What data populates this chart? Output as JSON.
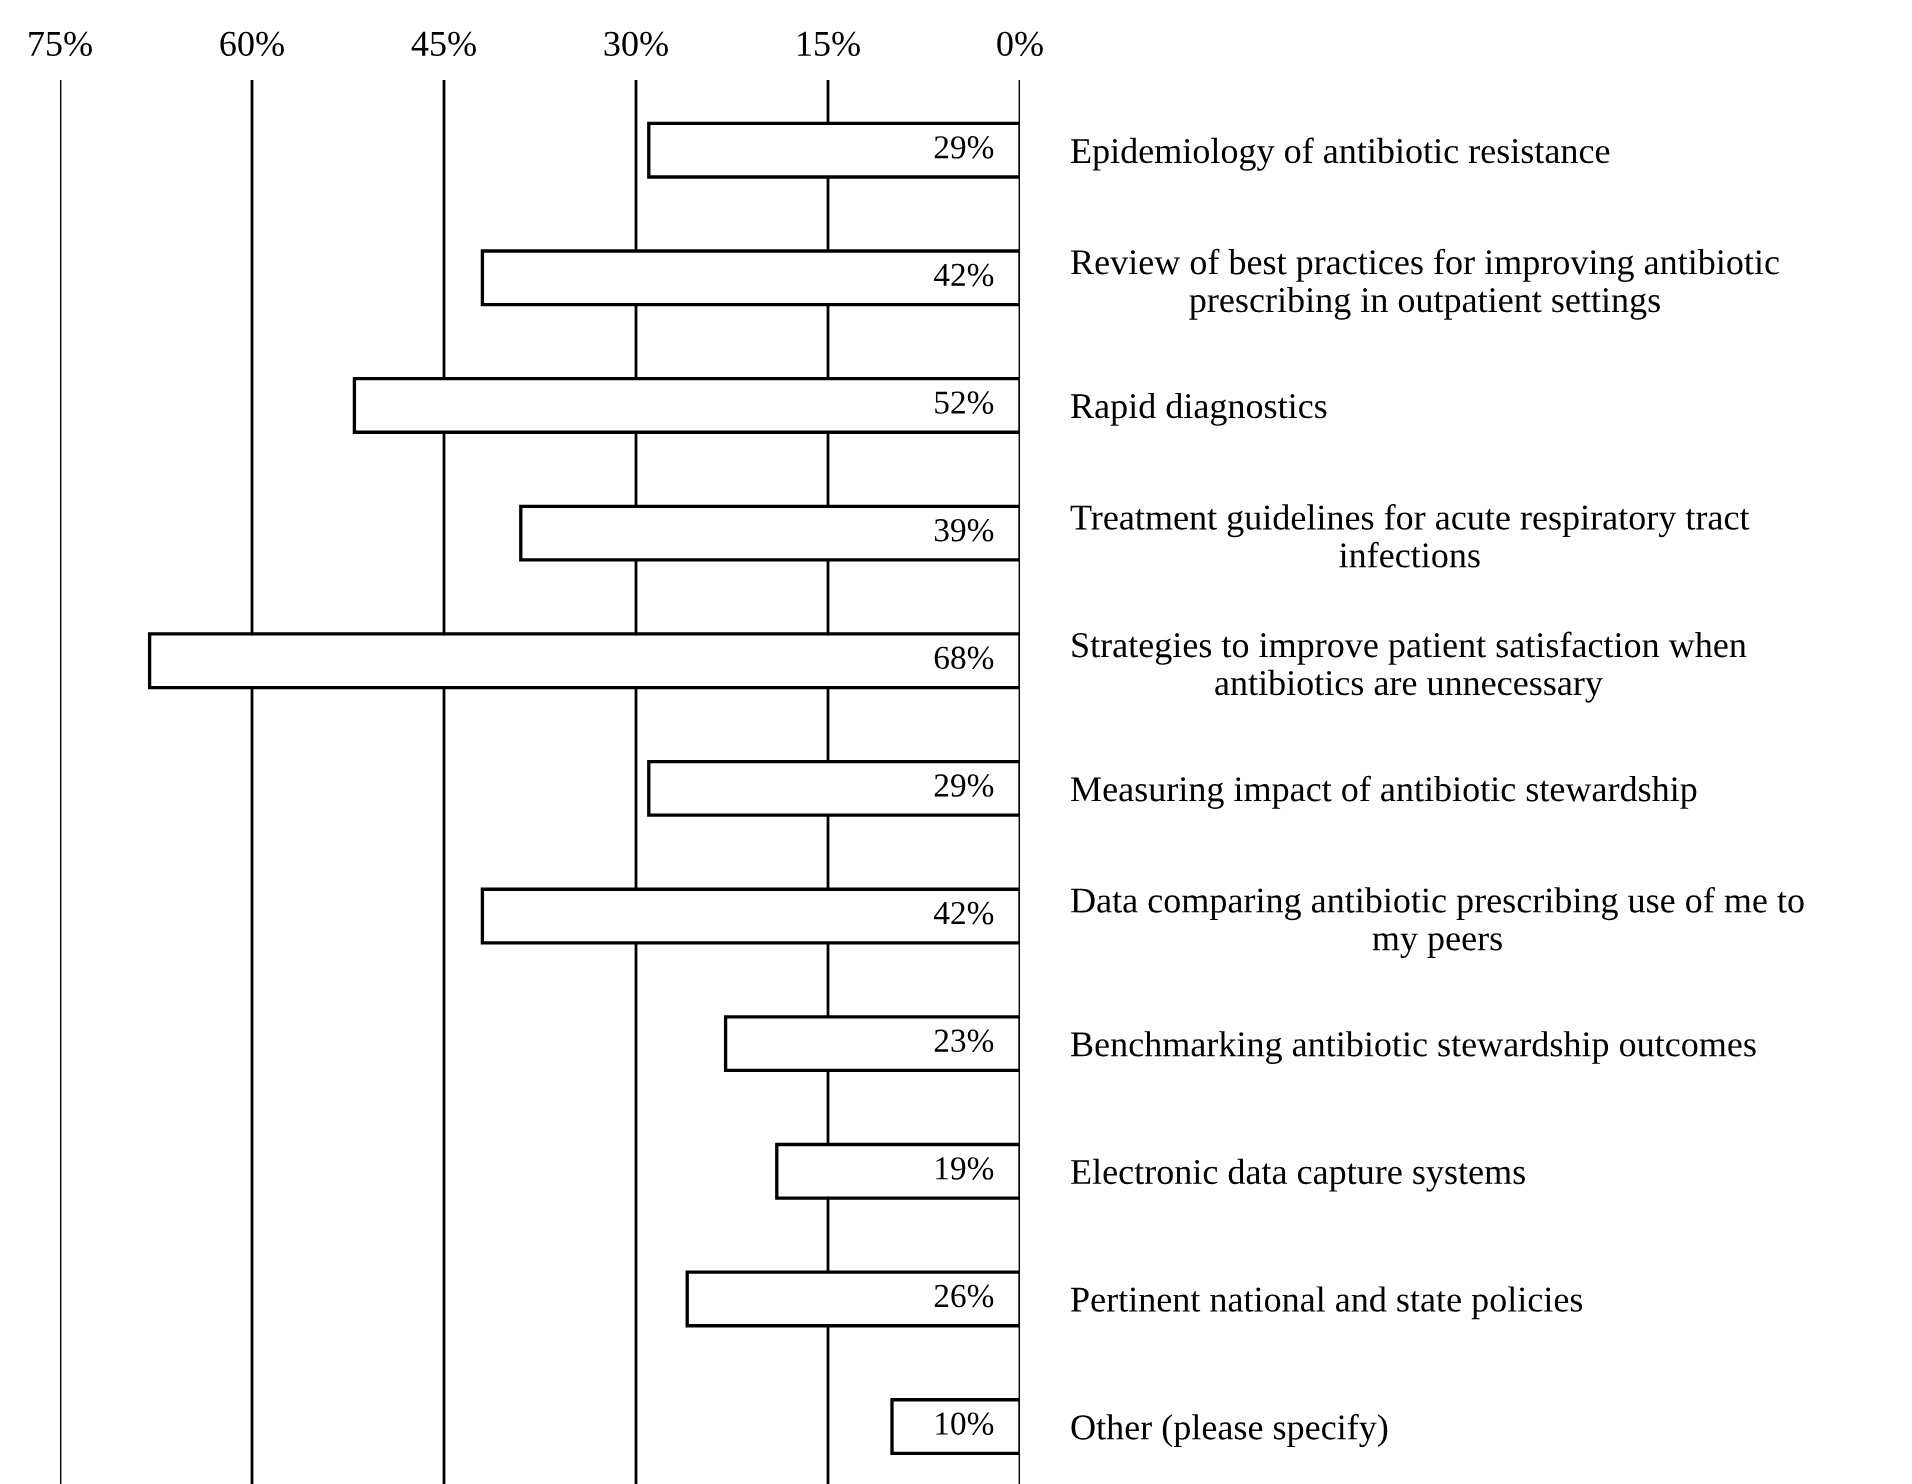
{
  "chart_data": {
    "type": "bar",
    "orientation": "horizontal",
    "categories": [
      "Epidemiology of antibiotic resistance",
      "Review of best practices for improving antibiotic\nprescribing in outpatient settings",
      "Rapid diagnostics",
      "Treatment guidelines for acute respiratory tract\ninfections",
      "Strategies to improve patient satisfaction when\nantibiotics are unnecessary",
      "Measuring impact of antibiotic stewardship",
      "Data comparing antibiotic prescribing use of me to\nmy peers",
      "Benchmarking antibiotic stewardship outcomes",
      "Electronic data capture systems",
      "Pertinent national and state policies",
      "Other (please specify)"
    ],
    "values": [
      29,
      42,
      52,
      39,
      68,
      29,
      42,
      23,
      19,
      26,
      10
    ],
    "value_labels": [
      "29%",
      "42%",
      "52%",
      "39%",
      "68%",
      "29%",
      "42%",
      "23%",
      "19%",
      "26%",
      "10%"
    ],
    "color": "#ffffff",
    "xlim": [
      75,
      0
    ],
    "xticks": [
      {
        "value": 75,
        "label": "75%"
      },
      {
        "value": 60,
        "label": "60%"
      },
      {
        "value": 45,
        "label": "45%"
      },
      {
        "value": 30,
        "label": "30%"
      },
      {
        "value": 15,
        "label": "15%"
      },
      {
        "value": 0,
        "label": "0%"
      }
    ],
    "grid": "x",
    "legend": false
  }
}
